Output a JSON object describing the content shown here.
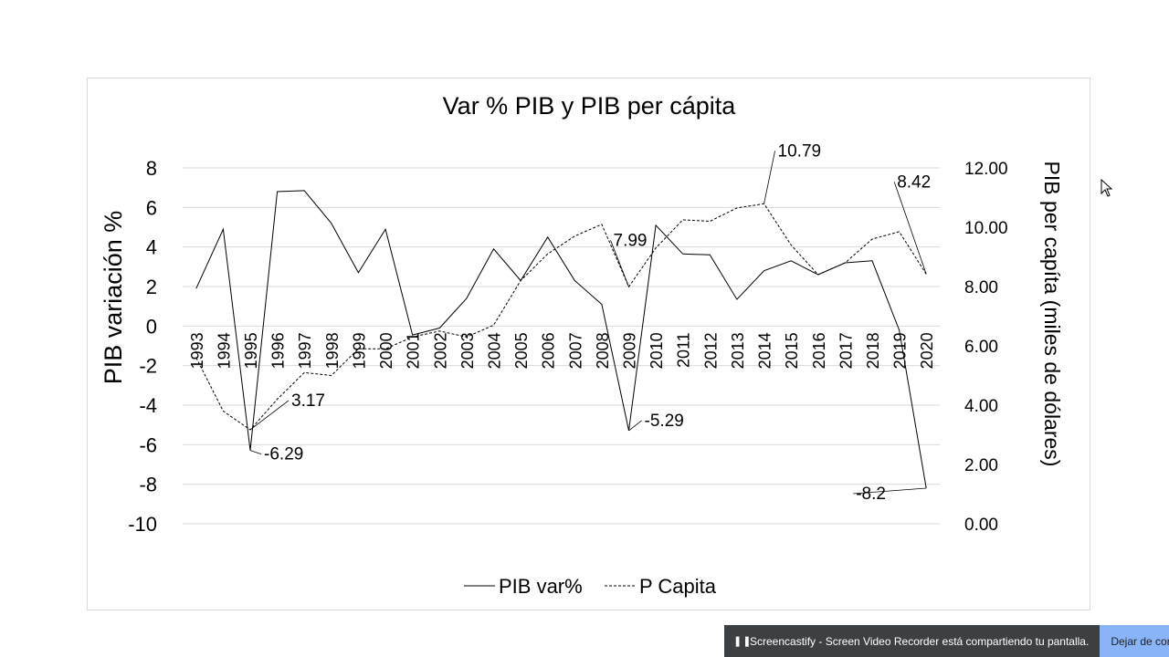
{
  "chart_data": {
    "type": "line",
    "title": "Var % PIB y PIB per cápita",
    "ylabel": "PIB variación %",
    "y2label": "PIB per capíta (miles de dólares)",
    "xlabel": "",
    "ylim": [
      -10,
      8
    ],
    "y2lim": [
      0,
      12
    ],
    "yticks": [
      "8",
      "6",
      "4",
      "2",
      "0",
      "-2",
      "-4",
      "-6",
      "-8",
      "-10"
    ],
    "y2ticks": [
      "12.00",
      "10.00",
      "8.00",
      "6.00",
      "4.00",
      "2.00",
      "0.00"
    ],
    "grid": true,
    "legend_position": "bottom",
    "categories": [
      "1993",
      "1994",
      "1995",
      "1996",
      "1997",
      "1998",
      "1999",
      "2000",
      "2001",
      "2002",
      "2003",
      "2004",
      "2005",
      "2006",
      "2007",
      "2008",
      "2009",
      "2010",
      "2011",
      "2012",
      "2013",
      "2014",
      "2015",
      "2016",
      "2017",
      "2018",
      "2019",
      "2020"
    ],
    "series": [
      {
        "name": "PIB var%",
        "axis": "left",
        "style": "solid",
        "color": "#000000",
        "values": [
          1.9,
          4.9,
          -6.29,
          6.8,
          6.85,
          5.2,
          2.7,
          4.9,
          -0.45,
          -0.1,
          1.4,
          3.9,
          2.3,
          4.5,
          2.3,
          1.1,
          -5.29,
          5.1,
          3.65,
          3.6,
          1.35,
          2.8,
          3.3,
          2.6,
          3.2,
          3.3,
          -0.2,
          -8.2
        ]
      },
      {
        "name": "P Capita",
        "axis": "right",
        "style": "dashed",
        "color": "#000000",
        "values": [
          5.6,
          3.8,
          3.17,
          4.2,
          5.1,
          5.0,
          5.9,
          5.9,
          6.3,
          6.5,
          6.3,
          6.7,
          8.2,
          9.1,
          9.7,
          10.1,
          7.99,
          9.3,
          10.25,
          10.2,
          10.65,
          10.79,
          9.4,
          8.4,
          8.8,
          9.6,
          9.85,
          8.42
        ]
      }
    ],
    "annotations": [
      {
        "series": 0,
        "index": 2,
        "text": "-6.29"
      },
      {
        "series": 1,
        "index": 2,
        "text": "3.17"
      },
      {
        "series": 1,
        "index": 16,
        "text": "7.99"
      },
      {
        "series": 0,
        "index": 16,
        "text": "-5.29"
      },
      {
        "series": 1,
        "index": 21,
        "text": "10.79"
      },
      {
        "series": 1,
        "index": 27,
        "text": "8.42"
      },
      {
        "series": 0,
        "index": 27,
        "text": "-8.2"
      }
    ]
  },
  "screen_share_bar": {
    "message": "Screencastify - Screen Video Recorder está compartiendo tu pantalla.",
    "stop_label": "Dejar de compartir"
  }
}
